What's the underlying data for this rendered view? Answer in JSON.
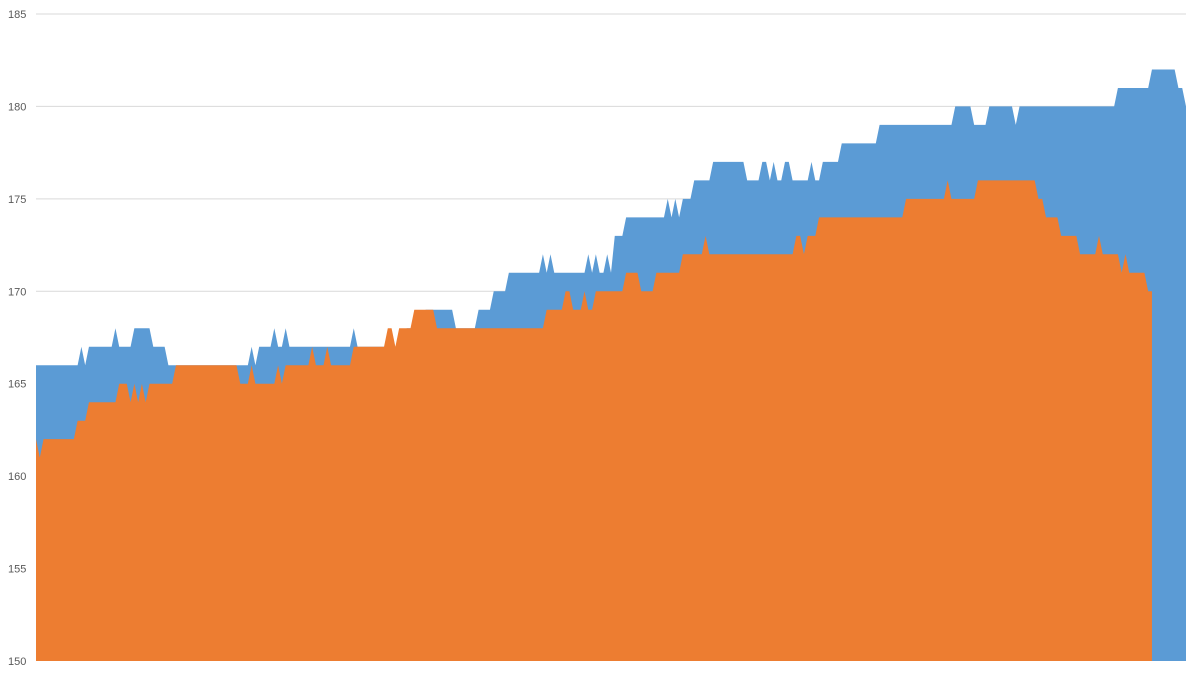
{
  "chart_data": {
    "type": "area",
    "title": "",
    "xlabel": "",
    "ylabel": "",
    "ylim": [
      150,
      185
    ],
    "yticks": [
      150,
      155,
      160,
      165,
      170,
      175,
      180,
      185
    ],
    "grid": true,
    "legend": "none",
    "series": [
      {
        "color": "#5b9bd5",
        "values": [
          166,
          166,
          166,
          166,
          166,
          166,
          166,
          166,
          166,
          166,
          166,
          166,
          167,
          166,
          167,
          167,
          167,
          167,
          167,
          167,
          167,
          168,
          167,
          167,
          167,
          167,
          168,
          168,
          168,
          168,
          168,
          167,
          167,
          167,
          167,
          166,
          166,
          166,
          166,
          166,
          166,
          166,
          166,
          166,
          166,
          166,
          166,
          166,
          166,
          166,
          166,
          166,
          166,
          166,
          166,
          166,
          166,
          167,
          166,
          167,
          167,
          167,
          167,
          168,
          167,
          167,
          168,
          167,
          167,
          167,
          167,
          167,
          167,
          167,
          167,
          167,
          167,
          167,
          167,
          167,
          167,
          167,
          167,
          167,
          168,
          167,
          167,
          167,
          167,
          167,
          167,
          167,
          167,
          167,
          167,
          167,
          167,
          167,
          168,
          168,
          168,
          169,
          168,
          169,
          169,
          169,
          169,
          169,
          169,
          169,
          169,
          168,
          168,
          168,
          168,
          168,
          168,
          169,
          169,
          169,
          169,
          170,
          170,
          170,
          170,
          171,
          171,
          171,
          171,
          171,
          171,
          171,
          171,
          171,
          172,
          171,
          172,
          171,
          171,
          171,
          171,
          171,
          171,
          171,
          171,
          171,
          172,
          171,
          172,
          171,
          171,
          172,
          171,
          173,
          173,
          173,
          174,
          174,
          174,
          174,
          174,
          174,
          174,
          174,
          174,
          174,
          174,
          175,
          174,
          175,
          174,
          175,
          175,
          175,
          176,
          176,
          176,
          176,
          176,
          177,
          177,
          177,
          177,
          177,
          177,
          177,
          177,
          177,
          176,
          176,
          176,
          176,
          177,
          177,
          176,
          177,
          176,
          176,
          177,
          177,
          176,
          176,
          176,
          176,
          176,
          177,
          176,
          176,
          177,
          177,
          177,
          177,
          177,
          178,
          178,
          178,
          178,
          178,
          178,
          178,
          178,
          178,
          178,
          179,
          179,
          179,
          179,
          179,
          179,
          179,
          179,
          179,
          179,
          179,
          179,
          179,
          179,
          179,
          179,
          179,
          179,
          179,
          179,
          180,
          180,
          180,
          180,
          180,
          179,
          179,
          179,
          179,
          180,
          180,
          180,
          180,
          180,
          180,
          180,
          179,
          180,
          180,
          180,
          180,
          180,
          180,
          180,
          180,
          180,
          180,
          180,
          180,
          180,
          180,
          180,
          180,
          180,
          180,
          180,
          180,
          180,
          180,
          180,
          180,
          180,
          180,
          181,
          181,
          181,
          181,
          181,
          181,
          181,
          181,
          181,
          182,
          182,
          182,
          182,
          182,
          182,
          182,
          181,
          181,
          180
        ]
      },
      {
        "color": "#ed7d31",
        "values": [
          162,
          161,
          162,
          162,
          162,
          162,
          162,
          162,
          162,
          162,
          162,
          163,
          163,
          163,
          164,
          164,
          164,
          164,
          164,
          164,
          164,
          164,
          165,
          165,
          165,
          164,
          165,
          164,
          165,
          164,
          165,
          165,
          165,
          165,
          165,
          165,
          165,
          166,
          166,
          166,
          166,
          166,
          166,
          166,
          166,
          166,
          166,
          166,
          166,
          166,
          166,
          166,
          166,
          166,
          165,
          165,
          165,
          166,
          165,
          165,
          165,
          165,
          165,
          165,
          166,
          165,
          166,
          166,
          166,
          166,
          166,
          166,
          166,
          167,
          166,
          166,
          166,
          167,
          166,
          166,
          166,
          166,
          166,
          166,
          167,
          167,
          167,
          167,
          167,
          167,
          167,
          167,
          167,
          168,
          168,
          167,
          168,
          168,
          168,
          168,
          169,
          169,
          169,
          169,
          169,
          169,
          168,
          168,
          168,
          168,
          168,
          168,
          168,
          168,
          168,
          168,
          168,
          168,
          168,
          168,
          168,
          168,
          168,
          168,
          168,
          168,
          168,
          168,
          168,
          168,
          168,
          168,
          168,
          168,
          168,
          169,
          169,
          169,
          169,
          169,
          170,
          170,
          169,
          169,
          169,
          170,
          169,
          169,
          170,
          170,
          170,
          170,
          170,
          170,
          170,
          170,
          171,
          171,
          171,
          171,
          170,
          170,
          170,
          170,
          171,
          171,
          171,
          171,
          171,
          171,
          171,
          172,
          172,
          172,
          172,
          172,
          172,
          173,
          172,
          172,
          172,
          172,
          172,
          172,
          172,
          172,
          172,
          172,
          172,
          172,
          172,
          172,
          172,
          172,
          172,
          172,
          172,
          172,
          172,
          172,
          172,
          173,
          173,
          172,
          173,
          173,
          173,
          174,
          174,
          174,
          174,
          174,
          174,
          174,
          174,
          174,
          174,
          174,
          174,
          174,
          174,
          174,
          174,
          174,
          174,
          174,
          174,
          174,
          174,
          174,
          175,
          175,
          175,
          175,
          175,
          175,
          175,
          175,
          175,
          175,
          175,
          176,
          175,
          175,
          175,
          175,
          175,
          175,
          175,
          176,
          176,
          176,
          176,
          176,
          176,
          176,
          176,
          176,
          176,
          176,
          176,
          176,
          176,
          176,
          176,
          175,
          175,
          174,
          174,
          174,
          174,
          173,
          173,
          173,
          173,
          173,
          172,
          172,
          172,
          172,
          172,
          173,
          172,
          172,
          172,
          172,
          172,
          171,
          172,
          171,
          171,
          171,
          171,
          171,
          170,
          170
        ]
      }
    ]
  }
}
